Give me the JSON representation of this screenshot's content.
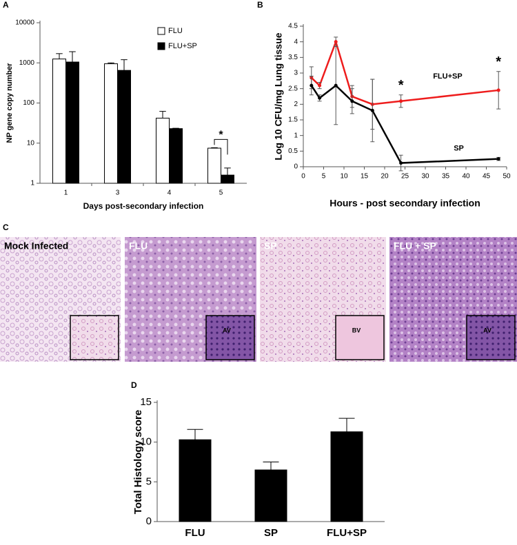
{
  "chart_data": [
    {
      "type": "bar",
      "panel": "A",
      "yscale": "log",
      "ylabel": "NP gene copy number",
      "xlabel": "Days post-secondary infection",
      "categories": [
        "1",
        "3",
        "4",
        "5"
      ],
      "series": [
        {
          "name": "FLU",
          "color": "#ffffff",
          "values": [
            1250,
            950,
            42,
            7.5
          ],
          "errors": [
            450,
            50,
            20,
            0.2
          ]
        },
        {
          "name": "FLU+SP",
          "color": "#000000",
          "values": [
            1050,
            650,
            23,
            1.6
          ],
          "errors": [
            850,
            550,
            0.5,
            0.8
          ]
        }
      ],
      "ylim": [
        1,
        10000
      ],
      "yticks": [
        1,
        10,
        100,
        1000,
        10000
      ],
      "legend": "upper right",
      "annotation": "*"
    },
    {
      "type": "line",
      "panel": "B",
      "ylabel": "Log 10 CFU/mg Lung tissue",
      "xlabel": "Hours - post secondary infection",
      "x": [
        2,
        4,
        8,
        12,
        17,
        24,
        48
      ],
      "series": [
        {
          "name": "FLU+SP",
          "color": "#ee1c1c",
          "values": [
            2.85,
            2.6,
            4.0,
            2.25,
            2.0,
            2.1,
            2.45
          ],
          "errors": [
            0.35,
            0.1,
            0.15,
            0.35,
            0.8,
            0.2,
            0.6
          ]
        },
        {
          "name": "SP",
          "color": "#000000",
          "values": [
            2.6,
            2.2,
            2.6,
            2.1,
            1.8,
            0.12,
            0.25
          ],
          "errors": [
            0.3,
            0.1,
            1.25,
            0.4,
            1.0,
            0.25,
            0.05
          ]
        }
      ],
      "xlim": [
        0,
        50
      ],
      "xticks": [
        0,
        5,
        10,
        15,
        20,
        25,
        30,
        35,
        40,
        45,
        50
      ],
      "ylim": [
        0,
        4.5
      ],
      "yticks": [
        0,
        0.5,
        1,
        1.5,
        2,
        2.5,
        3,
        3.5,
        4,
        4.5
      ],
      "annotations": [
        "*",
        "*"
      ]
    },
    {
      "type": "bar",
      "panel": "D",
      "ylabel": "Total Histology score",
      "categories": [
        "FLU",
        "SP",
        "FLU+SP"
      ],
      "series": [
        {
          "color": "#000000",
          "values": [
            10.3,
            6.5,
            11.3
          ],
          "errors": [
            1.3,
            1.0,
            1.7
          ]
        }
      ],
      "ylim": [
        0,
        15
      ],
      "yticks": [
        0,
        5,
        10,
        15
      ]
    }
  ],
  "histology": {
    "panel": "C",
    "images": [
      {
        "label": "Mock Infected"
      },
      {
        "label": "FLU",
        "inset": "AV"
      },
      {
        "label": "SP",
        "inset": "BV"
      },
      {
        "label": "FLU + SP",
        "inset": "AV"
      }
    ]
  }
}
